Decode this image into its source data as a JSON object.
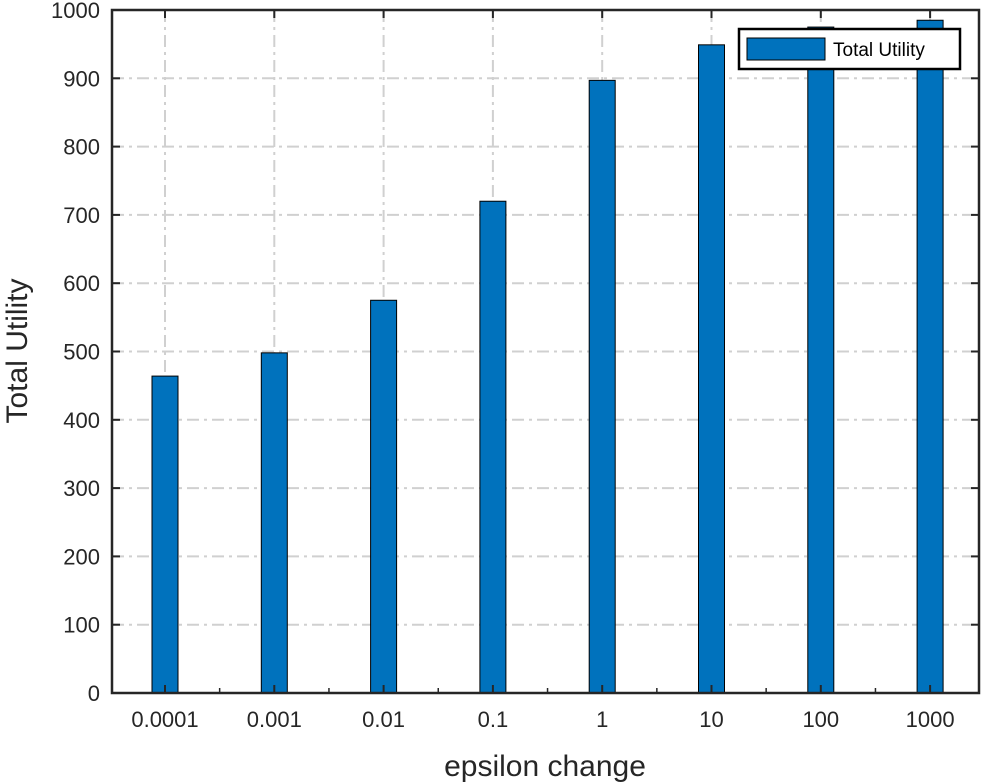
{
  "chart_data": {
    "type": "bar",
    "title": "",
    "xlabel": "epsilon change",
    "ylabel": "Total Utility",
    "categories": [
      "0.0001",
      "0.001",
      "0.01",
      "0.1",
      "1",
      "10",
      "100",
      "1000"
    ],
    "series": [
      {
        "name": "Total Utility",
        "values": [
          464,
          498,
          575,
          720,
          897,
          949,
          975,
          985
        ],
        "color": "#0072BD"
      }
    ],
    "ylim": [
      0,
      1000
    ],
    "yticks": [
      0,
      100,
      200,
      300,
      400,
      500,
      600,
      700,
      800,
      900,
      1000
    ],
    "grid": true,
    "legend_position": "top-right"
  }
}
